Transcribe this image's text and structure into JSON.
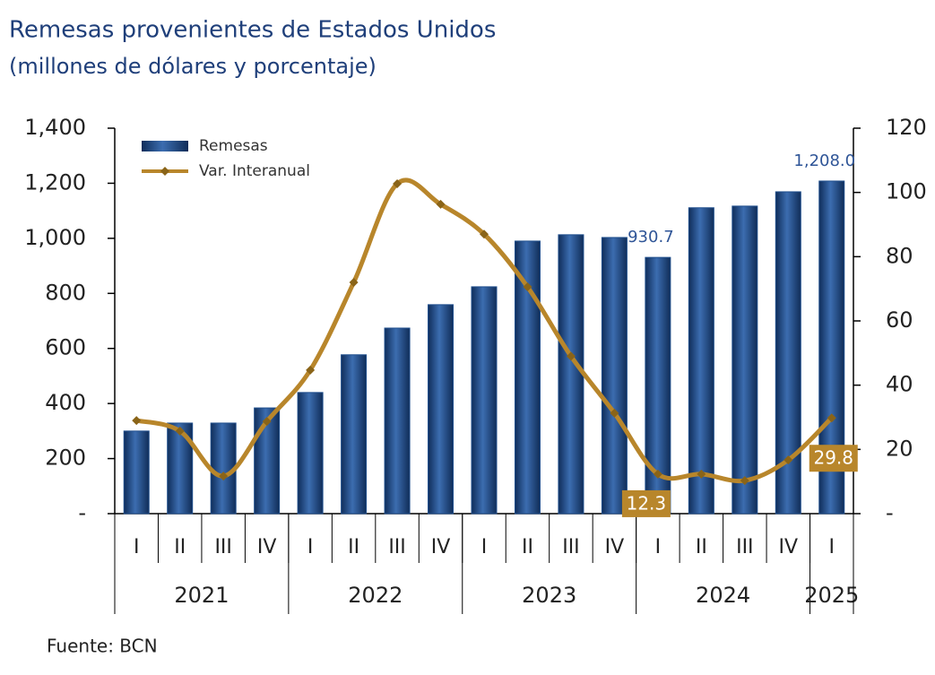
{
  "chart_data": {
    "type": "bar_line",
    "title": "Remesas provenientes de Estados Unidos",
    "subtitle": "(millones de dólares y porcentaje)",
    "source": "Fuente: BCN",
    "categories": [
      "I",
      "II",
      "III",
      "IV",
      "I",
      "II",
      "III",
      "IV",
      "I",
      "II",
      "III",
      "IV",
      "I",
      "II",
      "III",
      "IV",
      "I"
    ],
    "year_groups": [
      {
        "label": "2021",
        "count": 4
      },
      {
        "label": "2022",
        "count": 4
      },
      {
        "label": "2023",
        "count": 4
      },
      {
        "label": "2024",
        "count": 4
      },
      {
        "label": "2025",
        "count": 1
      }
    ],
    "series": [
      {
        "name": "Remesas",
        "type": "bar",
        "color": "#1f4e8c",
        "values": [
          300,
          329,
          329,
          384,
          440,
          577,
          674,
          759,
          824,
          990,
          1013,
          1003,
          930.7,
          1111,
          1117,
          1169,
          1208.0
        ],
        "value_labels": [
          null,
          null,
          null,
          null,
          null,
          null,
          null,
          null,
          null,
          null,
          null,
          null,
          "930.7",
          null,
          null,
          null,
          "1,208.0"
        ]
      },
      {
        "name": "Var. Interanual",
        "type": "line",
        "axis": "y2",
        "color": "#b8862b",
        "values": [
          29,
          25.7,
          11.7,
          28.7,
          44.7,
          72,
          102.7,
          96.3,
          87,
          70.6,
          49,
          31.3,
          12.3,
          12.3,
          10.3,
          16.7,
          29.8
        ],
        "value_labels": [
          null,
          null,
          null,
          null,
          null,
          null,
          null,
          null,
          null,
          null,
          null,
          null,
          "12.3",
          null,
          null,
          null,
          "29.8"
        ]
      }
    ],
    "ylim": [
      0,
      1400
    ],
    "yticks": [
      {
        "value": 0,
        "label": "-"
      },
      200,
      400,
      600,
      800,
      {
        "value": 1000,
        "label": "1,000"
      },
      {
        "value": 1200,
        "label": "1,200"
      },
      {
        "value": 1400,
        "label": "1,400"
      }
    ],
    "y2lim": [
      0,
      120
    ],
    "y2ticks": [
      {
        "value": 0,
        "label": "-"
      },
      20,
      40,
      60,
      80,
      100,
      120
    ],
    "legend": "top-left"
  }
}
